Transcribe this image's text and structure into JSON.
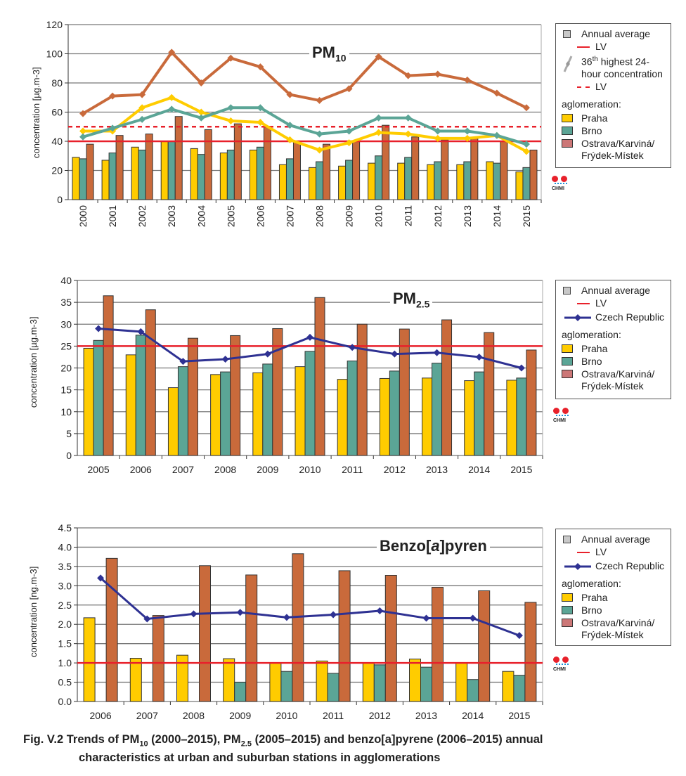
{
  "legend": {
    "annual_average": "Annual average",
    "lv": "LV",
    "highest_36th_sup": "th",
    "highest_36th_num": "36",
    "highest_36th_rest": " highest 24-hour concentration",
    "czech_republic": "Czech Republic",
    "aglomeration": "aglomeration:",
    "praha": "Praha",
    "brno": "Brno",
    "ostrava": "Ostrava/Karviná/ Frýdek-Místek"
  },
  "logo_text": "CHMI",
  "titles": {
    "pm10_main": "PM",
    "pm10_sub": "10",
    "pm25_main": "PM",
    "pm25_sub": "2.5",
    "bap_a": "Benzo[",
    "bap_b": "a",
    "bap_c": "]pyren"
  },
  "caption": {
    "p1": "Fig. V.2  Trends of PM",
    "s1": "10",
    "p2": " (2000–2015), PM",
    "s2": "2.5",
    "p3": " (2005–2015) and benzo[a]pyrene (2006–2015) annual",
    "line2": "characteristics at urban and suburban stations in agglomerations"
  },
  "colors": {
    "praha": "#FFCC00",
    "brno": "#5BA596",
    "ostrava": "#C96A3B",
    "ostrava_legend": "#CC7777",
    "czech": "#2E3192",
    "lv": "#E8212B"
  },
  "chart_data": [
    {
      "type": "bar",
      "title": "PM10",
      "ylabel": "concentration [µg.m-3]",
      "ylim": [
        0,
        120
      ],
      "ystep": 20,
      "decimals": 0,
      "categories": [
        "2000",
        "2001",
        "2002",
        "2003",
        "2004",
        "2005",
        "2006",
        "2007",
        "2008",
        "2009",
        "2010",
        "2011",
        "2012",
        "2013",
        "2014",
        "2015"
      ],
      "series": [
        {
          "name": "Praha",
          "kind": "bar",
          "values": [
            29,
            27,
            36,
            40,
            35,
            32,
            34,
            24,
            22,
            23,
            25,
            25,
            24,
            24,
            26,
            19
          ]
        },
        {
          "name": "Brno",
          "kind": "bar",
          "values": [
            28,
            32,
            34,
            40,
            31,
            34,
            36,
            28,
            26,
            27,
            30,
            29,
            26,
            26,
            25,
            22
          ]
        },
        {
          "name": "Ostrava/Karviná/Frýdek-Místek",
          "kind": "bar",
          "values": [
            38,
            44,
            45,
            57,
            48,
            52,
            50,
            40,
            38,
            40,
            51,
            43,
            41,
            42,
            40,
            34
          ]
        },
        {
          "name": "Praha 36th highest",
          "kind": "line",
          "values": [
            47,
            47,
            63,
            70,
            60,
            54,
            53,
            41,
            34,
            39,
            46,
            45,
            42,
            42,
            44,
            33
          ]
        },
        {
          "name": "Brno 36th highest",
          "kind": "line",
          "values": [
            43,
            49,
            55,
            62,
            56,
            63,
            63,
            51,
            45,
            47,
            56,
            56,
            47,
            47,
            44,
            38
          ]
        },
        {
          "name": "Ostrava 36th highest",
          "kind": "line",
          "values": [
            59,
            71,
            72,
            101,
            80,
            97,
            91,
            72,
            68,
            76,
            98,
            85,
            86,
            82,
            73,
            63
          ]
        }
      ],
      "limit_values": [
        {
          "name": "LV annual",
          "value": 40,
          "style": "solid"
        },
        {
          "name": "LV 24-hour",
          "value": 50,
          "style": "dashed"
        }
      ],
      "grid": true,
      "legend": "right"
    },
    {
      "type": "bar",
      "title": "PM2.5",
      "ylabel": "concentration [µg.m-3]",
      "ylim": [
        0,
        40
      ],
      "ystep": 5,
      "decimals": 0,
      "categories": [
        "2005",
        "2006",
        "2007",
        "2008",
        "2009",
        "2010",
        "2011",
        "2012",
        "2013",
        "2014",
        "2015"
      ],
      "series": [
        {
          "name": "Praha",
          "kind": "bar",
          "values": [
            24.5,
            23.0,
            15.5,
            18.5,
            18.9,
            20.3,
            17.4,
            17.6,
            17.7,
            17.1,
            17.2
          ]
        },
        {
          "name": "Brno",
          "kind": "bar",
          "values": [
            26.3,
            27.5,
            20.3,
            19.1,
            20.9,
            23.8,
            21.6,
            19.3,
            21.1,
            19.1,
            17.7
          ]
        },
        {
          "name": "Ostrava/Karviná/Frýdek-Místek",
          "kind": "bar",
          "values": [
            36.5,
            33.3,
            26.8,
            27.4,
            29.0,
            36.1,
            30.0,
            28.9,
            31.0,
            28.1,
            24.1
          ]
        },
        {
          "name": "Czech Republic",
          "kind": "line",
          "values": [
            29.0,
            28.3,
            21.5,
            22.0,
            23.2,
            27.0,
            24.7,
            23.2,
            23.5,
            22.5,
            20.0
          ]
        }
      ],
      "limit_values": [
        {
          "name": "LV",
          "value": 25,
          "style": "solid"
        }
      ],
      "grid": true,
      "legend": "right"
    },
    {
      "type": "bar",
      "title": "Benzo[a]pyren",
      "ylabel": "concentration [ng.m-3]",
      "ylim": [
        0,
        4.5
      ],
      "ystep": 0.5,
      "decimals": 1,
      "categories": [
        "2006",
        "2007",
        "2008",
        "2009",
        "2010",
        "2011",
        "2012",
        "2013",
        "2014",
        "2015"
      ],
      "series": [
        {
          "name": "Praha",
          "kind": "bar",
          "values": [
            2.17,
            1.12,
            1.2,
            1.11,
            1.0,
            1.05,
            1.0,
            1.1,
            1.0,
            0.78
          ]
        },
        {
          "name": "Brno",
          "kind": "bar",
          "values": [
            null,
            null,
            null,
            0.5,
            0.78,
            0.73,
            0.95,
            0.89,
            0.57,
            0.68
          ]
        },
        {
          "name": "Ostrava/Karviná/Frýdek-Místek",
          "kind": "bar",
          "values": [
            3.71,
            2.23,
            3.52,
            3.28,
            3.83,
            3.39,
            3.27,
            2.96,
            2.87,
            2.57
          ]
        },
        {
          "name": "Czech Republic",
          "kind": "line",
          "values": [
            3.2,
            2.14,
            2.27,
            2.31,
            2.18,
            2.25,
            2.35,
            2.16,
            2.16,
            1.71
          ]
        }
      ],
      "limit_values": [
        {
          "name": "LV",
          "value": 1.0,
          "style": "solid"
        }
      ],
      "grid": true,
      "legend": "right"
    }
  ]
}
